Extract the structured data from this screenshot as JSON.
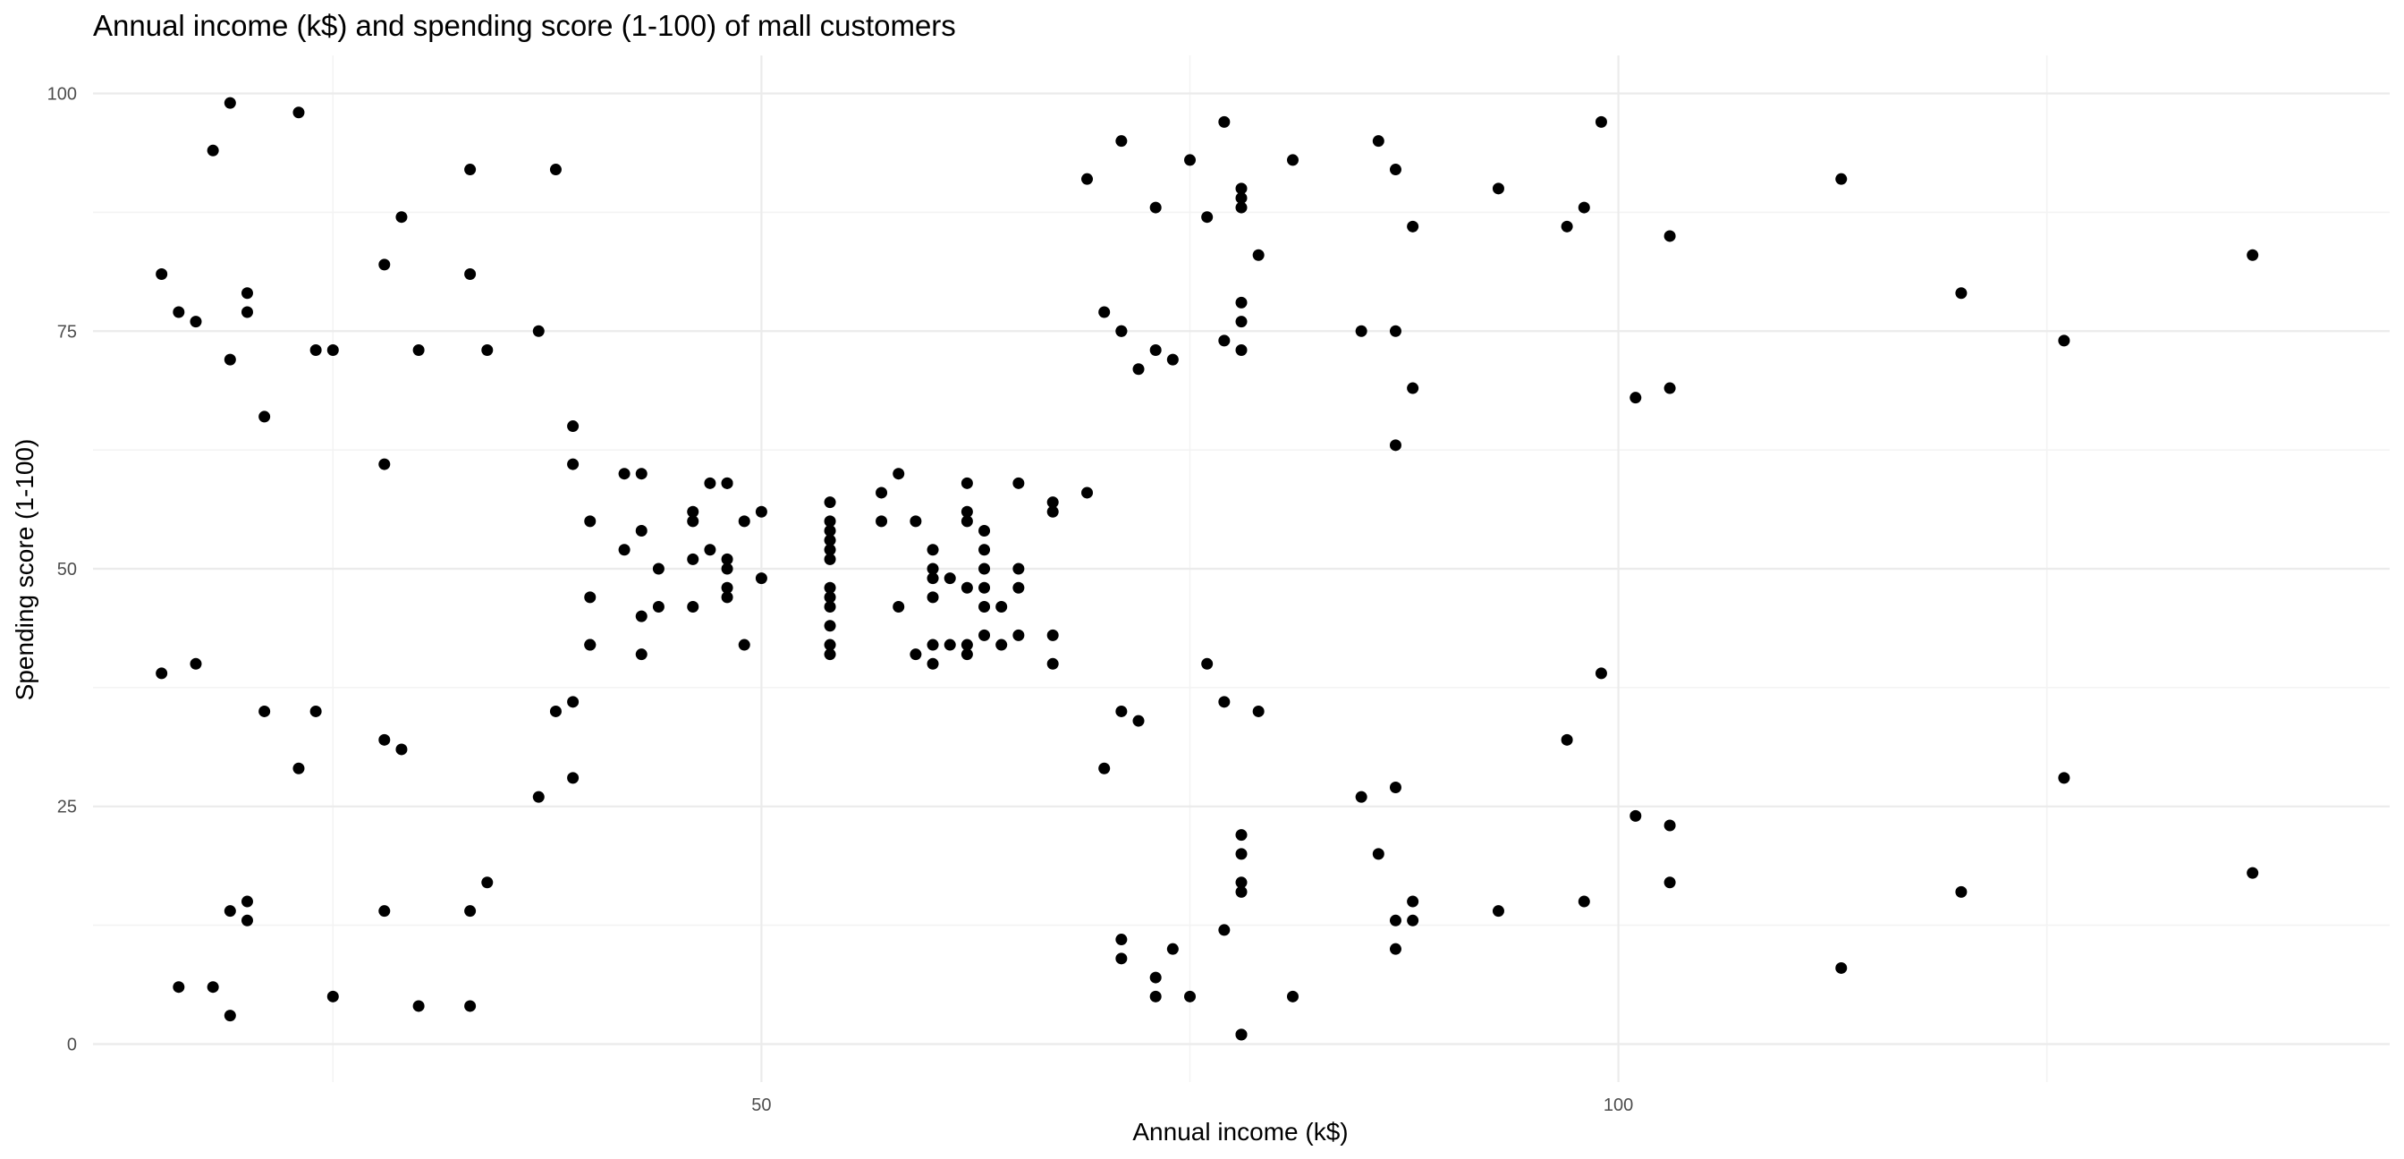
{
  "chart_data": {
    "type": "scatter",
    "title": "Annual income (k$) and spending score (1-100) of mall customers",
    "xlabel": "Annual income (k$)",
    "ylabel": "Spending score (1-100)",
    "xlim": [
      11,
      145
    ],
    "ylim": [
      -4,
      104
    ],
    "x_ticks": [
      50,
      100
    ],
    "y_ticks": [
      0,
      25,
      50,
      75,
      100
    ],
    "grid": true,
    "legend": "none",
    "point_color": "#000000",
    "points": [
      [
        15,
        39
      ],
      [
        15,
        81
      ],
      [
        16,
        6
      ],
      [
        16,
        77
      ],
      [
        17,
        40
      ],
      [
        17,
        76
      ],
      [
        18,
        6
      ],
      [
        18,
        94
      ],
      [
        19,
        3
      ],
      [
        19,
        72
      ],
      [
        19,
        14
      ],
      [
        19,
        99
      ],
      [
        20,
        15
      ],
      [
        20,
        77
      ],
      [
        20,
        13
      ],
      [
        20,
        79
      ],
      [
        21,
        35
      ],
      [
        21,
        66
      ],
      [
        23,
        29
      ],
      [
        23,
        98
      ],
      [
        24,
        35
      ],
      [
        24,
        73
      ],
      [
        25,
        5
      ],
      [
        25,
        73
      ],
      [
        28,
        14
      ],
      [
        28,
        82
      ],
      [
        28,
        32
      ],
      [
        28,
        61
      ],
      [
        29,
        31
      ],
      [
        29,
        87
      ],
      [
        30,
        4
      ],
      [
        30,
        73
      ],
      [
        33,
        4
      ],
      [
        33,
        92
      ],
      [
        33,
        14
      ],
      [
        33,
        81
      ],
      [
        34,
        17
      ],
      [
        34,
        73
      ],
      [
        37,
        26
      ],
      [
        37,
        75
      ],
      [
        38,
        35
      ],
      [
        38,
        92
      ],
      [
        39,
        36
      ],
      [
        39,
        61
      ],
      [
        39,
        28
      ],
      [
        39,
        65
      ],
      [
        40,
        55
      ],
      [
        40,
        47
      ],
      [
        40,
        42
      ],
      [
        40,
        42
      ],
      [
        42,
        52
      ],
      [
        42,
        60
      ],
      [
        43,
        54
      ],
      [
        43,
        60
      ],
      [
        43,
        45
      ],
      [
        43,
        41
      ],
      [
        44,
        50
      ],
      [
        44,
        46
      ],
      [
        46,
        51
      ],
      [
        46,
        46
      ],
      [
        46,
        56
      ],
      [
        46,
        55
      ],
      [
        47,
        52
      ],
      [
        47,
        59
      ],
      [
        48,
        51
      ],
      [
        48,
        59
      ],
      [
        48,
        50
      ],
      [
        48,
        48
      ],
      [
        48,
        59
      ],
      [
        48,
        47
      ],
      [
        49,
        55
      ],
      [
        49,
        42
      ],
      [
        50,
        49
      ],
      [
        50,
        56
      ],
      [
        54,
        47
      ],
      [
        54,
        54
      ],
      [
        54,
        53
      ],
      [
        54,
        48
      ],
      [
        54,
        52
      ],
      [
        54,
        42
      ],
      [
        54,
        51
      ],
      [
        54,
        55
      ],
      [
        54,
        41
      ],
      [
        54,
        44
      ],
      [
        54,
        57
      ],
      [
        54,
        46
      ],
      [
        57,
        58
      ],
      [
        57,
        55
      ],
      [
        58,
        60
      ],
      [
        58,
        46
      ],
      [
        59,
        55
      ],
      [
        59,
        41
      ],
      [
        60,
        49
      ],
      [
        60,
        40
      ],
      [
        60,
        42
      ],
      [
        60,
        52
      ],
      [
        60,
        47
      ],
      [
        60,
        50
      ],
      [
        61,
        42
      ],
      [
        61,
        49
      ],
      [
        62,
        41
      ],
      [
        62,
        48
      ],
      [
        62,
        59
      ],
      [
        62,
        55
      ],
      [
        62,
        56
      ],
      [
        62,
        42
      ],
      [
        63,
        50
      ],
      [
        63,
        46
      ],
      [
        63,
        43
      ],
      [
        63,
        48
      ],
      [
        63,
        52
      ],
      [
        63,
        54
      ],
      [
        64,
        42
      ],
      [
        64,
        46
      ],
      [
        65,
        48
      ],
      [
        65,
        50
      ],
      [
        65,
        43
      ],
      [
        65,
        59
      ],
      [
        67,
        43
      ],
      [
        67,
        57
      ],
      [
        67,
        56
      ],
      [
        67,
        40
      ],
      [
        69,
        58
      ],
      [
        69,
        91
      ],
      [
        70,
        29
      ],
      [
        70,
        77
      ],
      [
        71,
        35
      ],
      [
        71,
        95
      ],
      [
        71,
        11
      ],
      [
        71,
        75
      ],
      [
        71,
        9
      ],
      [
        71,
        75
      ],
      [
        72,
        34
      ],
      [
        72,
        71
      ],
      [
        73,
        5
      ],
      [
        73,
        88
      ],
      [
        73,
        7
      ],
      [
        73,
        73
      ],
      [
        74,
        10
      ],
      [
        74,
        72
      ],
      [
        75,
        5
      ],
      [
        75,
        93
      ],
      [
        76,
        40
      ],
      [
        76,
        87
      ],
      [
        77,
        12
      ],
      [
        77,
        97
      ],
      [
        77,
        36
      ],
      [
        77,
        74
      ],
      [
        78,
        22
      ],
      [
        78,
        90
      ],
      [
        78,
        17
      ],
      [
        78,
        88
      ],
      [
        78,
        20
      ],
      [
        78,
        76
      ],
      [
        78,
        16
      ],
      [
        78,
        89
      ],
      [
        78,
        1
      ],
      [
        78,
        78
      ],
      [
        78,
        1
      ],
      [
        78,
        73
      ],
      [
        79,
        35
      ],
      [
        79,
        83
      ],
      [
        81,
        5
      ],
      [
        81,
        93
      ],
      [
        85,
        26
      ],
      [
        85,
        75
      ],
      [
        86,
        20
      ],
      [
        86,
        95
      ],
      [
        87,
        27
      ],
      [
        87,
        63
      ],
      [
        87,
        13
      ],
      [
        87,
        75
      ],
      [
        87,
        10
      ],
      [
        87,
        92
      ],
      [
        88,
        13
      ],
      [
        88,
        86
      ],
      [
        88,
        15
      ],
      [
        88,
        69
      ],
      [
        93,
        14
      ],
      [
        93,
        90
      ],
      [
        97,
        32
      ],
      [
        97,
        86
      ],
      [
        98,
        15
      ],
      [
        98,
        88
      ],
      [
        99,
        39
      ],
      [
        99,
        97
      ],
      [
        101,
        24
      ],
      [
        101,
        68
      ],
      [
        103,
        17
      ],
      [
        103,
        85
      ],
      [
        103,
        23
      ],
      [
        103,
        69
      ],
      [
        113,
        8
      ],
      [
        113,
        91
      ],
      [
        120,
        16
      ],
      [
        120,
        79
      ],
      [
        126,
        28
      ],
      [
        126,
        74
      ],
      [
        137,
        18
      ],
      [
        137,
        83
      ]
    ]
  }
}
